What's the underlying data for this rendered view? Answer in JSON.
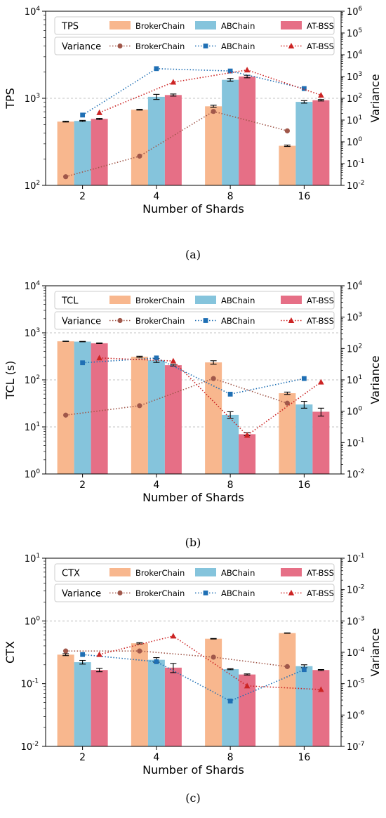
{
  "chart_data": [
    {
      "id": "a",
      "type": "bar",
      "caption": "(a)",
      "categories": [
        "2",
        "4",
        "8",
        "16"
      ],
      "xlabel": "Number of Shards",
      "ylabel": "TPS",
      "ylabel_right": "Variance",
      "ylim": [
        100,
        10000
      ],
      "ylim_right": [
        0.01,
        1000000
      ],
      "yticks": [
        {
          "v": 100,
          "base": "10",
          "exp": "2"
        },
        {
          "v": 1000,
          "base": "10",
          "exp": "3"
        },
        {
          "v": 10000,
          "base": "10",
          "exp": "4"
        }
      ],
      "yticks_right": [
        {
          "v": 0.01,
          "base": "10",
          "exp": "-2"
        },
        {
          "v": 0.1,
          "base": "10",
          "exp": "-1"
        },
        {
          "v": 1,
          "base": "10",
          "exp": "0"
        },
        {
          "v": 10,
          "base": "10",
          "exp": "1"
        },
        {
          "v": 100,
          "base": "10",
          "exp": "2"
        },
        {
          "v": 1000,
          "base": "10",
          "exp": "3"
        },
        {
          "v": 10000,
          "base": "10",
          "exp": "4"
        },
        {
          "v": 100000,
          "base": "10",
          "exp": "5"
        },
        {
          "v": 1000000,
          "base": "10",
          "exp": "6"
        }
      ],
      "gridlines": [
        1000
      ],
      "legend_bar_title": "TPS",
      "legend_line_title": "Variance",
      "series": [
        {
          "name": "BrokerChain",
          "color": "#f8b78e",
          "line_color": "#a0574a",
          "marker": "circle",
          "values": [
            540,
            740,
            810,
            285
          ],
          "errors": [
            6,
            8,
            22,
            5
          ],
          "variance": [
            0.025,
            0.22,
            25,
            3.2
          ]
        },
        {
          "name": "ABChain",
          "color": "#85c4dc",
          "line_color": "#1f6fb4",
          "marker": "square",
          "values": [
            550,
            1040,
            1630,
            910
          ],
          "errors": [
            8,
            70,
            60,
            30
          ],
          "variance": [
            17,
            2300,
            1800,
            280
          ]
        },
        {
          "name": "AT-BSS",
          "color": "#e66f86",
          "line_color": "#cc2424",
          "marker": "triangle",
          "values": [
            580,
            1090,
            1780,
            950
          ],
          "errors": [
            8,
            30,
            60,
            18
          ],
          "variance": [
            22,
            550,
            2000,
            140
          ]
        }
      ]
    },
    {
      "id": "b",
      "type": "bar",
      "caption": "(b)",
      "categories": [
        "2",
        "4",
        "8",
        "16"
      ],
      "xlabel": "Number of Shards",
      "ylabel": "TCL (s)",
      "ylabel_right": "Variance",
      "ylim": [
        1,
        10000
      ],
      "ylim_right": [
        0.01,
        10000
      ],
      "yticks": [
        {
          "v": 1,
          "base": "10",
          "exp": "0"
        },
        {
          "v": 10,
          "base": "10",
          "exp": "1"
        },
        {
          "v": 100,
          "base": "10",
          "exp": "2"
        },
        {
          "v": 1000,
          "base": "10",
          "exp": "3"
        },
        {
          "v": 10000,
          "base": "10",
          "exp": "4"
        }
      ],
      "yticks_right": [
        {
          "v": 0.01,
          "base": "10",
          "exp": "-2"
        },
        {
          "v": 0.1,
          "base": "10",
          "exp": "-1"
        },
        {
          "v": 1,
          "base": "10",
          "exp": "0"
        },
        {
          "v": 10,
          "base": "10",
          "exp": "1"
        },
        {
          "v": 100,
          "base": "10",
          "exp": "2"
        },
        {
          "v": 1000,
          "base": "10",
          "exp": "3"
        },
        {
          "v": 10000,
          "base": "10",
          "exp": "4"
        }
      ],
      "gridlines": [
        10,
        100,
        1000
      ],
      "legend_bar_title": "TCL",
      "legend_line_title": "Variance",
      "series": [
        {
          "name": "BrokerChain",
          "color": "#f8b78e",
          "line_color": "#a0574a",
          "marker": "circle",
          "values": [
            660,
            310,
            235,
            52
          ],
          "errors": [
            6,
            8,
            20,
            3
          ],
          "variance": [
            0.75,
            1.5,
            11,
            1.8
          ]
        },
        {
          "name": "ABChain",
          "color": "#85c4dc",
          "line_color": "#1f6fb4",
          "marker": "square",
          "values": [
            650,
            260,
            18,
            30
          ],
          "errors": [
            6,
            25,
            3,
            5
          ],
          "variance": [
            35,
            50,
            3.5,
            11
          ]
        },
        {
          "name": "AT-BSS",
          "color": "#e66f86",
          "line_color": "#cc2424",
          "marker": "triangle",
          "values": [
            600,
            205,
            7,
            21
          ],
          "errors": [
            10,
            8,
            0.5,
            4
          ],
          "variance": [
            50,
            40,
            0.17,
            8.5
          ]
        }
      ]
    },
    {
      "id": "c",
      "type": "bar",
      "caption": "(c)",
      "categories": [
        "2",
        "4",
        "8",
        "16"
      ],
      "xlabel": "Number of Shards",
      "ylabel": "CTX",
      "ylabel_right": "Variance",
      "ylim": [
        0.01,
        10
      ],
      "ylim_right": [
        1e-07,
        0.1
      ],
      "yticks": [
        {
          "v": 0.01,
          "base": "10",
          "exp": "-2"
        },
        {
          "v": 0.1,
          "base": "10",
          "exp": "-1"
        },
        {
          "v": 1,
          "base": "10",
          "exp": "0"
        },
        {
          "v": 10,
          "base": "10",
          "exp": "1"
        }
      ],
      "yticks_right": [
        {
          "v": 1e-07,
          "base": "10",
          "exp": "-7"
        },
        {
          "v": 1e-06,
          "base": "10",
          "exp": "-6"
        },
        {
          "v": 1e-05,
          "base": "10",
          "exp": "-5"
        },
        {
          "v": 0.0001,
          "base": "10",
          "exp": "-4"
        },
        {
          "v": 0.001,
          "base": "10",
          "exp": "-3"
        },
        {
          "v": 0.01,
          "base": "10",
          "exp": "-2"
        },
        {
          "v": 0.1,
          "base": "10",
          "exp": "-1"
        }
      ],
      "gridlines": [
        1
      ],
      "legend_bar_title": "CTX",
      "legend_line_title": "Variance",
      "series": [
        {
          "name": "BrokerChain",
          "color": "#f8b78e",
          "line_color": "#a0574a",
          "marker": "circle",
          "values": [
            0.29,
            0.44,
            0.52,
            0.64
          ],
          "errors": [
            0.01,
            0.01,
            0.005,
            0.005
          ],
          "variance": [
            0.00011,
            0.00011,
            7e-05,
            3.5e-05
          ]
        },
        {
          "name": "ABChain",
          "color": "#85c4dc",
          "line_color": "#1f6fb4",
          "marker": "square",
          "values": [
            0.22,
            0.24,
            0.17,
            0.19
          ],
          "errors": [
            0.015,
            0.02,
            0.003,
            0.01
          ],
          "variance": [
            8.5e-05,
            5e-05,
            2.8e-06,
            2.8e-05
          ]
        },
        {
          "name": "AT-BSS",
          "color": "#e66f86",
          "line_color": "#cc2424",
          "marker": "triangle",
          "values": [
            0.165,
            0.18,
            0.14,
            0.165
          ],
          "errors": [
            0.01,
            0.03,
            0.003,
            0.003
          ],
          "variance": [
            8.5e-05,
            0.00033,
            8.5e-06,
            6.5e-06
          ]
        }
      ]
    }
  ]
}
